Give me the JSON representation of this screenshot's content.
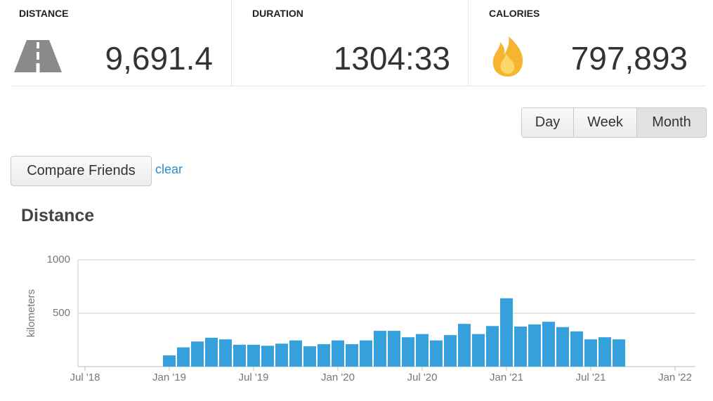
{
  "stats": [
    {
      "label": "DISTANCE",
      "value": "9,691.4"
    },
    {
      "label": "DURATION",
      "value": "1304:33"
    },
    {
      "label": "CALORIES",
      "value": "797,893"
    }
  ],
  "period_buttons": [
    "Day",
    "Week",
    "Month"
  ],
  "compare_button": "Compare Friends",
  "clear_link": "clear",
  "chart_data": {
    "type": "bar",
    "title": "Distance",
    "y_label": "kilometers",
    "color": "#35a0dc",
    "x": [
      "2019-01",
      "2019-02",
      "2019-03",
      "2019-04",
      "2019-05",
      "2019-06",
      "2019-07",
      "2019-08",
      "2019-09",
      "2019-10",
      "2019-11",
      "2019-12",
      "2020-01",
      "2020-02",
      "2020-03",
      "2020-04",
      "2020-05",
      "2020-06",
      "2020-07",
      "2020-08",
      "2020-09",
      "2020-10",
      "2020-11",
      "2020-12",
      "2021-01",
      "2021-02",
      "2021-03",
      "2021-04",
      "2021-05",
      "2021-06",
      "2021-07",
      "2021-08",
      "2021-09"
    ],
    "values": [
      105,
      180,
      235,
      270,
      255,
      205,
      205,
      195,
      215,
      245,
      190,
      210,
      245,
      210,
      245,
      335,
      335,
      275,
      305,
      245,
      295,
      400,
      305,
      380,
      640,
      375,
      395,
      420,
      370,
      330,
      255,
      275,
      255
    ],
    "xlim": [
      "2018-07",
      "2022-01"
    ],
    "xticks": [
      {
        "value": "2018-07",
        "label": "Jul '18"
      },
      {
        "value": "2019-01",
        "label": "Jan '19"
      },
      {
        "value": "2019-07",
        "label": "Jul '19"
      },
      {
        "value": "2020-01",
        "label": "Jan '20"
      },
      {
        "value": "2020-07",
        "label": "Jul '20"
      },
      {
        "value": "2021-01",
        "label": "Jan '21"
      },
      {
        "value": "2021-07",
        "label": "Jul '21"
      },
      {
        "value": "2022-01",
        "label": "Jan '22"
      }
    ],
    "ylim": [
      0,
      1000
    ],
    "yticks": [
      500,
      1000
    ],
    "grid": true
  }
}
